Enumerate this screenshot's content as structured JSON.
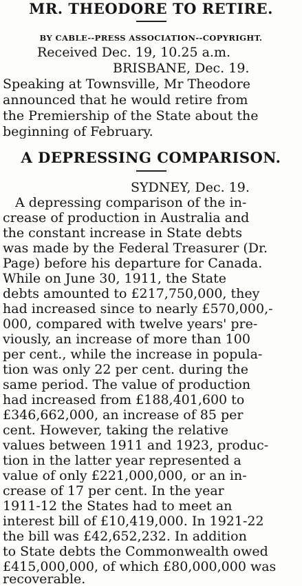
{
  "article1": {
    "headline": "MR. THEODORE TO RETIRE.",
    "byline": "BY CABLE--PRESS ASSOCIATION--COPYRIGHT.",
    "received": "Received Dec. 19, 10.25 a.m.",
    "dateline": "BRISBANE, Dec. 19.",
    "body_lines": [
      "Speaking at Townsville, Mr Theodore",
      "announced that he would retire from",
      "the Premiership of the State about the",
      "beginning of February."
    ]
  },
  "article2": {
    "headline": "A DEPRESSING COMPARISON.",
    "dateline": "SYDNEY, Dec. 19.",
    "body_lines": [
      "A depressing comparison of the in-",
      "crease of production in Australia and",
      "the constant increase in State debts",
      "was made by the Federal Treasurer (Dr.",
      "Page) before his departure for Canada.",
      "While on June 30, 1911, the State",
      "debts amounted to £217,750,000, they",
      "had increased since to nearly £570,000,-",
      "000, compared with twelve years' pre-",
      "viously, an increase of more than 100",
      "per cent., while the increase in popula-",
      "tion was only 22 per cent. during the",
      "same period. The value of production",
      "had increased from £188,401,600 to",
      "£346,662,000, an increase of 85 per",
      "cent. However, taking the relative",
      "values between 1911 and 1923, produc-",
      "tion in the latter year represented a",
      "value of only £221,000,000, or an in-",
      "crease of 17 per cent. In the year",
      "1911-12 the States had to meet an",
      "interest bill of £10,419,000. In 1921-22",
      "the bill was £42,652,232. In addition",
      "to State debts the Commonwealth owed",
      "£415,000,000, of which £80,000,000 was",
      "recoverable."
    ]
  }
}
